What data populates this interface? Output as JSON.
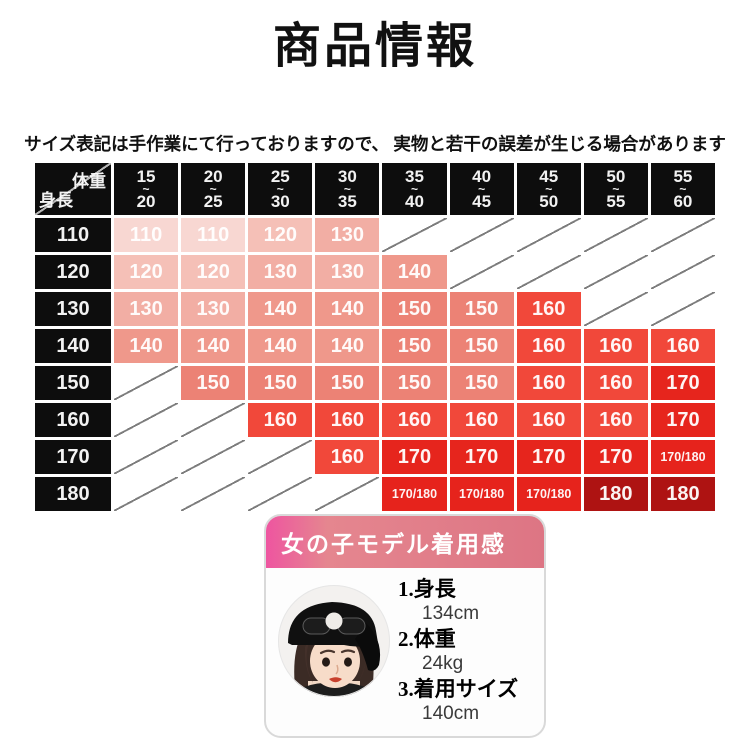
{
  "title": "商品情報",
  "disclaimer": "サイズ表記は手作業にて行っておりますので、 実物と若干の誤差が生じる場合があります",
  "table": {
    "corner": {
      "top_right": "体重",
      "bottom_left": "身長"
    },
    "weight_columns": [
      [
        "15",
        "20"
      ],
      [
        "20",
        "25"
      ],
      [
        "25",
        "30"
      ],
      [
        "30",
        "35"
      ],
      [
        "35",
        "40"
      ],
      [
        "40",
        "45"
      ],
      [
        "45",
        "50"
      ],
      [
        "50",
        "55"
      ],
      [
        "55",
        "60"
      ]
    ],
    "rows": [
      {
        "height": "110",
        "cells": [
          "110",
          "110",
          "120",
          "130",
          null,
          null,
          null,
          null,
          null
        ]
      },
      {
        "height": "120",
        "cells": [
          "120",
          "120",
          "130",
          "130",
          "140",
          null,
          null,
          null,
          null
        ]
      },
      {
        "height": "130",
        "cells": [
          "130",
          "130",
          "140",
          "140",
          "150",
          "150",
          "160",
          null,
          null
        ]
      },
      {
        "height": "140",
        "cells": [
          "140",
          "140",
          "140",
          "140",
          "150",
          "150",
          "160",
          "160",
          "160"
        ]
      },
      {
        "height": "150",
        "cells": [
          null,
          "150",
          "150",
          "150",
          "150",
          "150",
          "160",
          "160",
          "170"
        ]
      },
      {
        "height": "160",
        "cells": [
          null,
          null,
          "160",
          "160",
          "160",
          "160",
          "160",
          "160",
          "170"
        ]
      },
      {
        "height": "170",
        "cells": [
          null,
          null,
          null,
          "160",
          "170",
          "170",
          "170",
          "170",
          "170/180"
        ]
      },
      {
        "height": "180",
        "cells": [
          null,
          null,
          null,
          null,
          "170/180",
          "170/180",
          "170/180",
          "180",
          "180"
        ]
      }
    ],
    "value_colors": {
      "110": "#f8d7d2",
      "120": "#f5c0b7",
      "130": "#f2aea4",
      "140": "#ef988b",
      "150": "#ec8275",
      "160": "#f1483a",
      "170": "#e6251d",
      "170/180": "#e6231c",
      "180": "#ae1312"
    }
  },
  "model_panel": {
    "header": "女の子モデル着用感",
    "items": [
      {
        "label": "1.身長",
        "value": "134cm"
      },
      {
        "label": "2.体重",
        "value": "24kg"
      },
      {
        "label": "3.着用サイズ",
        "value": "140cm"
      }
    ]
  },
  "colors": {
    "table_header_bg": "#0d0d0d",
    "empty_cell_line": "#7d7d7d",
    "panel_pink_left": "#ee55a0",
    "panel_pink_right": "#dd7584",
    "dark_red_max": "#ae1312"
  }
}
